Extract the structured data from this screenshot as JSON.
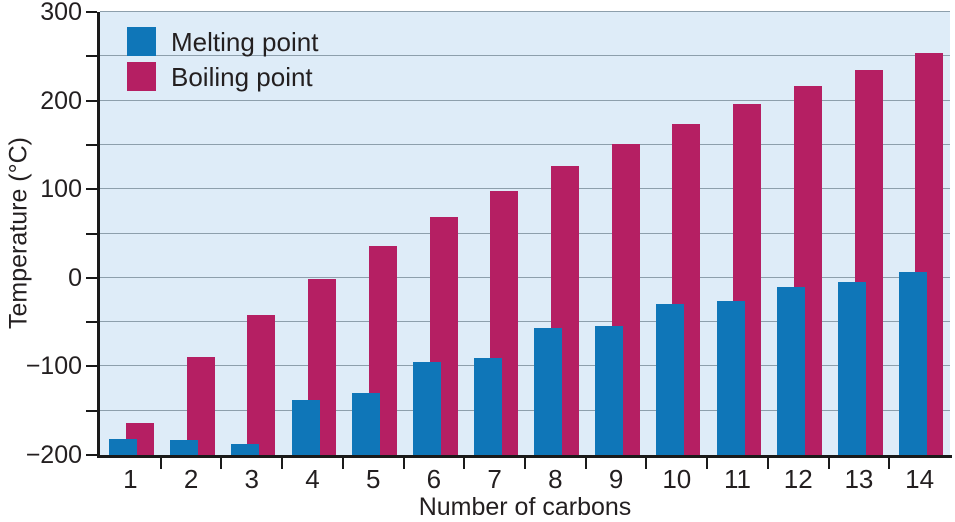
{
  "colors": {
    "plot_background": "#DEECF8",
    "gridline": "#8D9FAC",
    "axis": "#1A1A1A",
    "text": "#231F20",
    "melting_point": "#0F76B8",
    "boiling_point": "#B51F63"
  },
  "chart_data": {
    "type": "bar",
    "title": "",
    "xlabel": "Number of carbons",
    "ylabel": "Temperature (°C)",
    "categories": [
      "1",
      "2",
      "3",
      "4",
      "5",
      "6",
      "7",
      "8",
      "9",
      "10",
      "11",
      "12",
      "13",
      "14"
    ],
    "series": [
      {
        "name": "Melting point",
        "color": "#0F76B8",
        "values": [
          -182,
          -183,
          -188,
          -138,
          -130,
          -95,
          -91,
          -57,
          -54,
          -30,
          -26,
          -10,
          -5,
          6
        ]
      },
      {
        "name": "Boiling point",
        "color": "#B51F63",
        "values": [
          -164,
          -89,
          -42,
          -1,
          36,
          69,
          98,
          126,
          151,
          174,
          196,
          216,
          235,
          254
        ]
      }
    ],
    "ylim": [
      -200,
      300
    ],
    "bar_baseline": -200,
    "grid": true,
    "grid_step": 50,
    "legend_position": "top-left",
    "y_axis_ticks": [
      {
        "value": 300,
        "label": "300"
      },
      {
        "value": 250,
        "label": ""
      },
      {
        "value": 200,
        "label": "200"
      },
      {
        "value": 150,
        "label": ""
      },
      {
        "value": 100,
        "label": "100"
      },
      {
        "value": 50,
        "label": ""
      },
      {
        "value": 0,
        "label": "0"
      },
      {
        "value": -50,
        "label": ""
      },
      {
        "value": -100,
        "label": "−100"
      },
      {
        "value": -150,
        "label": ""
      },
      {
        "value": -200,
        "label": "−200"
      }
    ]
  }
}
